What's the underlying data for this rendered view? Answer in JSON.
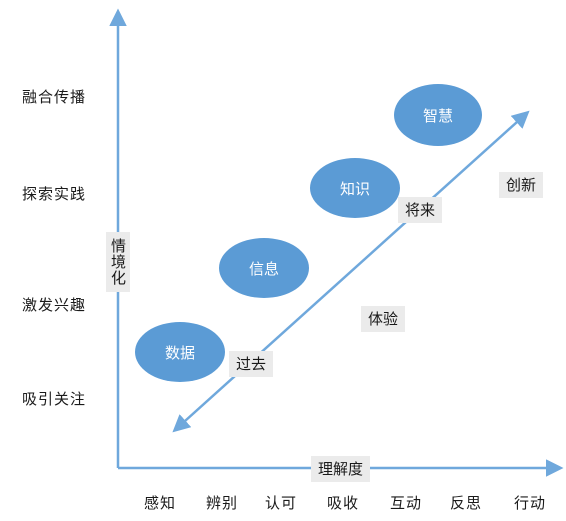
{
  "colors": {
    "axis": "#6fa8dc",
    "bubble": "#5b9bd5",
    "box": "#ebebeb"
  },
  "y_axis": {
    "title": "情境化",
    "levels": [
      "融合传播",
      "探索实践",
      "激发兴趣",
      "吸引关注"
    ]
  },
  "x_axis": {
    "title": "理解度",
    "levels": [
      "感知",
      "辨别",
      "认可",
      "吸收",
      "互动",
      "反思",
      "行动"
    ]
  },
  "bubbles": [
    "数据",
    "信息",
    "知识",
    "智慧"
  ],
  "labels": {
    "past": "过去",
    "future": "将来",
    "experience": "体验",
    "innovation": "创新"
  }
}
